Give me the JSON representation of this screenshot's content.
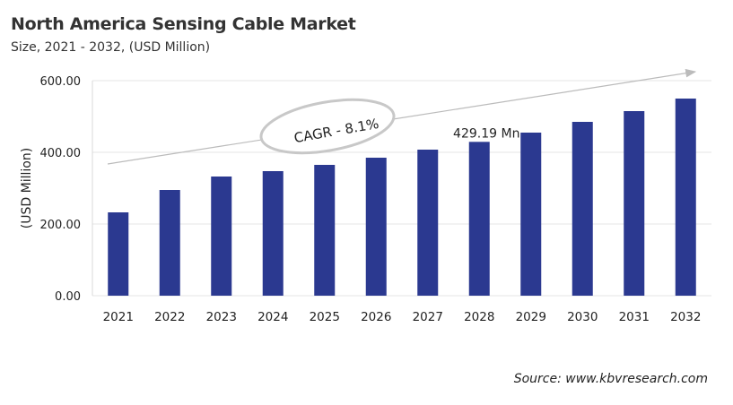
{
  "chart_data": {
    "type": "bar",
    "title": "North America Sensing Cable Market",
    "subtitle": "Size, 2021 - 2032, (USD Million)",
    "xlabel": "",
    "ylabel": "(USD Million)",
    "ylim": [
      0,
      600
    ],
    "yticks": [
      "0.00",
      "200.00",
      "400.00",
      "600.00"
    ],
    "categories": [
      "2021",
      "2022",
      "2023",
      "2024",
      "2025",
      "2026",
      "2027",
      "2028",
      "2029",
      "2030",
      "2031",
      "2032"
    ],
    "values": [
      232.5,
      295,
      332.5,
      347.5,
      365,
      385,
      407.5,
      429.19,
      455,
      485,
      515,
      550
    ],
    "data_label": {
      "category": "2028",
      "text": "429.19 Mn"
    },
    "annotation": "CAGR - 8.1%",
    "bar_color": "#2b3990",
    "grid": true,
    "source": "Source: www.kbvresearch.com"
  }
}
